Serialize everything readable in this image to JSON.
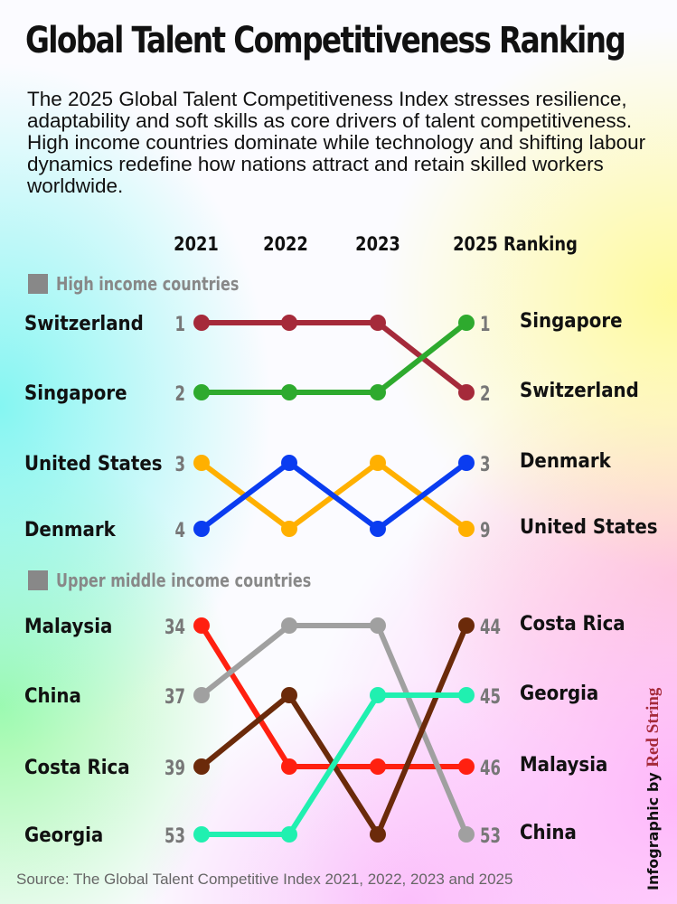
{
  "title": "Global Talent Competitiveness Ranking",
  "intro": "The 2025 Global Talent Competitiveness Index stresses resilience, adaptability and soft skills as core drivers of talent competitiveness. High income countries dominate while technology and shifting labour dynamics redefine how nations attract and retain skilled workers worldwide.",
  "source": "Source: The Global Talent Competitive Index 2021, 2022, 2023 and 2025",
  "credit": {
    "prefix": "Infographic by",
    "brand": "Red String"
  },
  "chart_data": {
    "type": "line",
    "subtype": "bump",
    "columns": [
      "2021",
      "2022",
      "2023",
      "2025 Ranking"
    ],
    "groups": [
      {
        "name": "High income countries",
        "left_labels": [
          "Switzerland",
          "Singapore",
          "United States",
          "Denmark"
        ],
        "left_ranks": [
          "1",
          "2",
          "3",
          "4"
        ],
        "right_labels": [
          "Singapore",
          "Switzerland",
          "Denmark",
          "United States"
        ],
        "right_ranks": [
          "1",
          "2",
          "3",
          "9"
        ],
        "series": [
          {
            "name": "Switzerland",
            "color": "#a52a3a",
            "positions": [
              1,
              1,
              1,
              2
            ]
          },
          {
            "name": "Singapore",
            "color": "#2eaa2e",
            "positions": [
              2,
              2,
              2,
              1
            ]
          },
          {
            "name": "United States",
            "color": "#ffb000",
            "positions": [
              3,
              4,
              3,
              4
            ]
          },
          {
            "name": "Denmark",
            "color": "#0a3cf0",
            "positions": [
              4,
              3,
              4,
              3
            ]
          }
        ]
      },
      {
        "name": "Upper middle income countries",
        "left_labels": [
          "Malaysia",
          "China",
          "Costa Rica",
          "Georgia"
        ],
        "left_ranks": [
          "34",
          "37",
          "39",
          "53"
        ],
        "right_labels": [
          "Costa Rica",
          "Georgia",
          "Malaysia",
          "China"
        ],
        "right_ranks": [
          "44",
          "45",
          "46",
          "53"
        ],
        "series": [
          {
            "name": "Malaysia",
            "color": "#ff2010",
            "positions": [
              1,
              3,
              3,
              3
            ]
          },
          {
            "name": "China",
            "color": "#a0a0a0",
            "positions": [
              2,
              1,
              1,
              4
            ]
          },
          {
            "name": "Costa Rica",
            "color": "#6b2a0a",
            "positions": [
              3,
              2,
              4,
              1
            ]
          },
          {
            "name": "Georgia",
            "color": "#20f0b0",
            "positions": [
              4,
              4,
              2,
              2
            ]
          }
        ]
      }
    ],
    "legend_color": "#888888"
  }
}
